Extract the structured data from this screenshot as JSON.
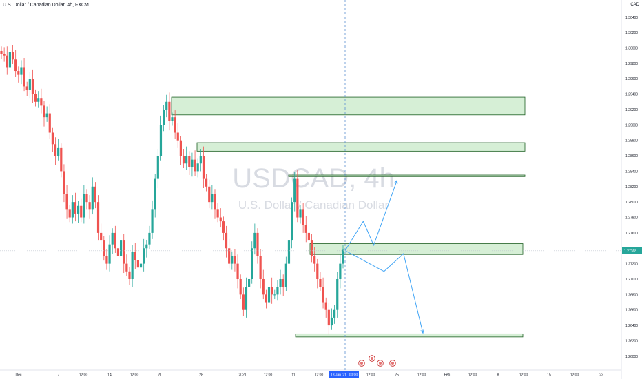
{
  "header": {
    "symbol_title": "U.S. Dollar / Canadian Dollar, 4h, FXCM",
    "currency": "CAD"
  },
  "watermark": {
    "symbol": "USDCAD, 4h",
    "name": "U.S. Dollar / Canadian Dollar"
  },
  "colors": {
    "up": "#26a69a",
    "down": "#ef5350",
    "zone_fill": "#d6efd6",
    "zone_stroke": "#1b5e20",
    "projection": "#42a5f5",
    "crosshair": "#5b8fd1"
  },
  "chart_data": {
    "type": "candlestick",
    "ylim": [
      1.259,
      1.3055
    ],
    "y_ticks": [
      "1.30400",
      "1.30200",
      "1.30000",
      "1.29800",
      "1.29600",
      "1.29400",
      "1.29200",
      "1.29000",
      "1.28800",
      "1.28600",
      "1.28400",
      "1.28200",
      "1.28000",
      "1.27800",
      "1.27600",
      "1.27400",
      "1.27200",
      "1.27000",
      "1.26800",
      "1.26600",
      "1.26400",
      "1.26200",
      "1.26000"
    ],
    "x_ticks": [
      "Dec",
      "7",
      "12:00",
      "14",
      "12:00",
      "21",
      "28",
      "2021",
      "12:00",
      "11",
      "12:00",
      "18 Jan '21",
      "00:00",
      "12:00",
      "25",
      "12:00",
      "Feb",
      "12:00",
      "8",
      "12:00",
      "15",
      "12:00",
      "22"
    ],
    "current_price": "1.27368",
    "crosshair_time": "18 Jan '21",
    "crosshair_clock": "00:00",
    "zones": [
      {
        "from": 1.2913,
        "to": 1.2936
      },
      {
        "from": 1.2866,
        "to": 1.2877
      },
      {
        "from": 1.2833,
        "to": 1.2835
      },
      {
        "from": 1.2732,
        "to": 1.2746
      },
      {
        "from": 1.2625,
        "to": 1.2629
      }
    ],
    "ohlc_closes": [
      1.2992,
      1.299,
      1.2975,
      1.2995,
      1.2985,
      1.297,
      1.2965,
      1.2975,
      1.295,
      1.2945,
      1.296,
      1.294,
      1.293,
      1.2935,
      1.2925,
      1.291,
      1.2915,
      1.289,
      1.2875,
      1.286,
      1.287,
      1.284,
      1.281,
      1.279,
      1.278,
      1.28,
      1.2785,
      1.2795,
      1.278,
      1.281,
      1.28,
      1.279,
      1.282,
      1.28,
      1.276,
      1.275,
      1.273,
      1.272,
      1.2745,
      1.276,
      1.274,
      1.273,
      1.275,
      1.272,
      1.271,
      1.27,
      1.2735,
      1.2725,
      1.2715,
      1.272,
      1.274,
      1.2745,
      1.276,
      1.279,
      1.283,
      1.286,
      1.29,
      1.292,
      1.293,
      1.2905,
      1.291,
      1.289,
      1.288,
      1.286,
      1.285,
      1.286,
      1.2845,
      1.2855,
      1.284,
      1.285,
      1.286,
      1.283,
      1.282,
      1.28,
      1.281,
      1.279,
      1.278,
      1.2775,
      1.276,
      1.274,
      1.272,
      1.273,
      1.272,
      1.27,
      1.268,
      1.266,
      1.269,
      1.27,
      1.274,
      1.276,
      1.273,
      1.27,
      1.268,
      1.267,
      1.269,
      1.268,
      1.268,
      1.269,
      1.27,
      1.269,
      1.272,
      1.275,
      1.28,
      1.283,
      1.278,
      1.279,
      1.277,
      1.276,
      1.275,
      1.273,
      1.272,
      1.27,
      1.269,
      1.267,
      1.266,
      1.264,
      1.265,
      1.266,
      1.27,
      1.272,
      1.2738
    ],
    "projections": [
      {
        "path": [
          [
            1.2737,
            0
          ],
          [
            1.2775,
            14
          ],
          [
            1.2744,
            22
          ],
          [
            1.2828,
            40
          ]
        ]
      },
      {
        "path": [
          [
            1.2737,
            0
          ],
          [
            1.271,
            30
          ],
          [
            1.2733,
            45
          ],
          [
            1.263,
            60
          ]
        ]
      }
    ]
  }
}
